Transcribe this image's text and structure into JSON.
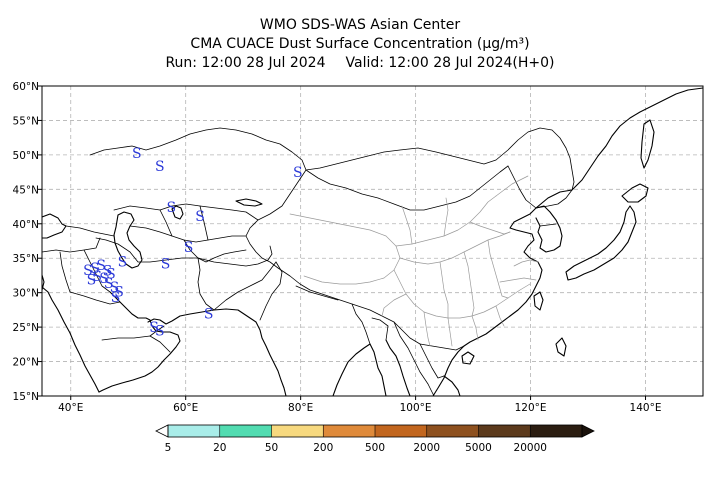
{
  "title": {
    "line1": "WMO SDS-WAS Asian Center",
    "line2": "CMA CUACE Dust Surface Concentration (μg/m³)",
    "run": "Run: 12:00 28 Jul 2024",
    "valid": "Valid: 12:00 28 Jul 2024(H+0)"
  },
  "map": {
    "lon_range": [
      35,
      150
    ],
    "lat_range": [
      15,
      60
    ],
    "lon_ticks": [
      {
        "value": 40,
        "label": "40°E"
      },
      {
        "value": 60,
        "label": "60°E"
      },
      {
        "value": 80,
        "label": "80°E"
      },
      {
        "value": 100,
        "label": "100°E"
      },
      {
        "value": 120,
        "label": "120°E"
      },
      {
        "value": 140,
        "label": "140°E"
      }
    ],
    "lat_ticks": [
      {
        "value": 15,
        "label": "15°N"
      },
      {
        "value": 20,
        "label": "20°N"
      },
      {
        "value": 25,
        "label": "25°N"
      },
      {
        "value": 30,
        "label": "30°N"
      },
      {
        "value": 35,
        "label": "35°N"
      },
      {
        "value": 40,
        "label": "40°N"
      },
      {
        "value": 45,
        "label": "45°N"
      },
      {
        "value": 50,
        "label": "50°N"
      },
      {
        "value": 55,
        "label": "55°N"
      },
      {
        "value": 60,
        "label": "60°N"
      }
    ],
    "grid": true,
    "marker_symbol": "S",
    "marker_color": "#2b39d8",
    "dust_markers": [
      {
        "lon": 51.5,
        "lat": 50.3
      },
      {
        "lon": 55.5,
        "lat": 48.4
      },
      {
        "lon": 79.5,
        "lat": 47.5
      },
      {
        "lon": 57.5,
        "lat": 42.4
      },
      {
        "lon": 62.5,
        "lat": 41.1
      },
      {
        "lon": 60.5,
        "lat": 36.6
      },
      {
        "lon": 56.5,
        "lat": 34.2
      },
      {
        "lon": 49.0,
        "lat": 34.5
      },
      {
        "lon": 64.0,
        "lat": 27.0
      },
      {
        "lon": 43.0,
        "lat": 33.3
      },
      {
        "lon": 44.2,
        "lat": 33.6
      },
      {
        "lon": 45.3,
        "lat": 34.0
      },
      {
        "lon": 46.4,
        "lat": 33.2
      },
      {
        "lon": 44.6,
        "lat": 32.4
      },
      {
        "lon": 45.8,
        "lat": 32.1
      },
      {
        "lon": 47.0,
        "lat": 32.8
      },
      {
        "lon": 43.6,
        "lat": 31.9
      },
      {
        "lon": 46.6,
        "lat": 31.4
      },
      {
        "lon": 47.6,
        "lat": 30.8
      },
      {
        "lon": 48.4,
        "lat": 30.2
      },
      {
        "lon": 47.8,
        "lat": 29.4
      },
      {
        "lon": 54.5,
        "lat": 25.0
      },
      {
        "lon": 55.5,
        "lat": 24.5
      }
    ]
  },
  "colorbar": {
    "bins": [
      {
        "color": "#a9ede9"
      },
      {
        "color": "#52dcb1"
      },
      {
        "color": "#f7d97f"
      },
      {
        "color": "#df8a3a"
      },
      {
        "color": "#c2661e"
      },
      {
        "color": "#8e511f"
      },
      {
        "color": "#5c3a1c"
      },
      {
        "color": "#2b1d11"
      }
    ],
    "low_arrow_color": "#ffffff",
    "high_arrow_color": "#1a120b",
    "tick_labels": [
      "5",
      "20",
      "50",
      "200",
      "500",
      "2000",
      "5000",
      "20000"
    ]
  }
}
